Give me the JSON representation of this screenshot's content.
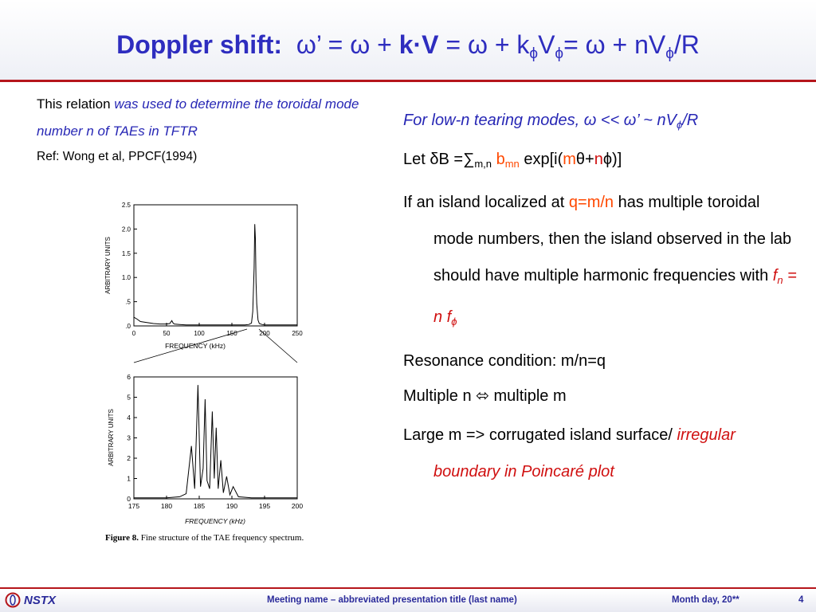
{
  "slide": {
    "title_lead": "Doppler shift:",
    "title_eq_1": "ω’ = ω + ",
    "title_k": "k",
    "title_dot": "·",
    "title_V": "V",
    "title_eq_2": " = ω + k",
    "sub_phi": "ϕ",
    "title_eq_3": "V",
    "title_eq_4": "= ω + nV",
    "title_eq_5": "/R"
  },
  "left": {
    "relation_plain": "This relation ",
    "relation_italic": "was used to determine the toroidal mode number n of TAEs in TFTR",
    "ref": "Ref: Wong et al, PPCF(1994)"
  },
  "figure": {
    "caption_label": "Figure 8.",
    "caption_text": " Fine structure of the TAE frequency spectrum."
  },
  "chart_data": [
    {
      "type": "line",
      "xlabel": "FREQUENCY (kHz)",
      "ylabel": "ARBITRARY UNITS",
      "xlim": [
        0,
        250
      ],
      "ylim": [
        0,
        2.5
      ],
      "xticks": [
        "0",
        "50",
        "100",
        "150",
        "200",
        "250"
      ],
      "yticks": [
        ".0",
        ".5",
        "1.0",
        "1.5",
        "2.0",
        "2.5"
      ],
      "x": [
        0,
        5,
        10,
        20,
        30,
        40,
        50,
        55,
        58,
        60,
        62,
        70,
        80,
        90,
        100,
        110,
        120,
        130,
        140,
        150,
        160,
        170,
        176,
        180,
        182,
        184,
        185,
        186,
        187,
        188,
        190,
        192,
        196,
        200,
        210,
        220,
        230,
        240,
        250
      ],
      "y": [
        0.18,
        0.14,
        0.09,
        0.07,
        0.05,
        0.04,
        0.04,
        0.05,
        0.11,
        0.06,
        0.04,
        0.03,
        0.02,
        0.02,
        0.02,
        0.02,
        0.02,
        0.02,
        0.02,
        0.02,
        0.02,
        0.02,
        0.03,
        0.06,
        0.3,
        1.2,
        2.1,
        1.8,
        0.9,
        0.45,
        0.12,
        0.05,
        0.03,
        0.02,
        0.02,
        0.02,
        0.02,
        0.02,
        0.02
      ]
    },
    {
      "type": "line",
      "xlabel": "FREQUENCY (kHz)",
      "ylabel": "ARBITRARY UNITS",
      "xlim": [
        175,
        200
      ],
      "ylim": [
        0,
        6
      ],
      "xticks": [
        "175",
        "180",
        "185",
        "190",
        "195",
        "200"
      ],
      "yticks": [
        "0",
        "1",
        "2",
        "3",
        "4",
        "5",
        "6"
      ],
      "x": [
        175,
        178,
        180,
        182,
        183,
        183.8,
        184.3,
        184.8,
        185.2,
        185.6,
        185.9,
        186.2,
        186.6,
        187.0,
        187.3,
        187.6,
        187.9,
        188.3,
        188.7,
        189.2,
        189.7,
        190.2,
        191,
        193,
        196,
        200
      ],
      "y": [
        0.05,
        0.05,
        0.05,
        0.1,
        0.25,
        2.6,
        0.5,
        5.6,
        0.6,
        1.5,
        4.9,
        0.9,
        0.5,
        4.3,
        1.0,
        3.5,
        0.5,
        1.9,
        0.3,
        1.1,
        0.2,
        0.6,
        0.1,
        0.05,
        0.05,
        0.05
      ]
    }
  ],
  "right": {
    "intro": "For low-n tearing modes, ω << ω’ ~ nV",
    "intro_sub": "ϕ",
    "intro_end": "/R",
    "let_1": "Let ",
    "let_delta": "δ",
    "let_B": "B =",
    "let_sum": "∑",
    "let_sub": "m,n",
    "let_b": " b",
    "let_bsub": "mn",
    "let_exp": " exp[i(",
    "let_m": "m",
    "let_theta": "θ",
    "let_plus": "+",
    "let_n": "n",
    "let_phi": "ϕ",
    "let_close": ")]",
    "island_1": "If an island localized at ",
    "island_q": "q",
    "island_eq": "=",
    "island_mn": "m/n",
    "island_2": " has multiple toroidal mode numbers, then the island observed in the lab should have multiple harmonic frequencies with  ",
    "island_f": "f",
    "island_fsub": "n",
    "island_eq2": " = n f",
    "island_fsub2": "ϕ",
    "resonance": "Resonance condition: m/n=q",
    "multiple_1": "Multiple n ",
    "multiple_arrow": "⬄",
    "multiple_2": " multiple m",
    "large_1": "Large m => corrugated island surface/ ",
    "large_2": "irregular boundary in Poincaré plot"
  },
  "footer": {
    "logo": "NSTX",
    "meeting": "Meeting name  – abbreviated presentation title (last name)",
    "date": "Month day, 20**",
    "page": "4"
  },
  "colors": {
    "title_blue": "#2e2dbf",
    "accent_red": "#b5151b",
    "text_blue": "#2727b5",
    "highlight_red": "#d01010",
    "highlight_orange": "#ff4800"
  }
}
